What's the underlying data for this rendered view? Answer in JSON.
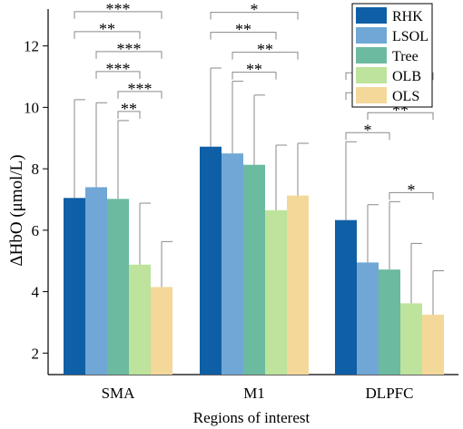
{
  "chart_data": {
    "type": "bar",
    "title": "",
    "xlabel": "Regions of interest",
    "ylabel": "ΔHbO (μmol/L)",
    "ylim": [
      1.3,
      13.2
    ],
    "yticks": [
      2,
      4,
      6,
      8,
      10,
      12
    ],
    "grid": false,
    "legend_position": "top-right",
    "categories": [
      "SMA",
      "M1",
      "DLPFC"
    ],
    "series": [
      {
        "name": "RHK",
        "color": "#0f5fa6",
        "values": [
          7.05,
          8.72,
          6.33
        ],
        "error_upper": [
          10.25,
          11.28,
          8.88
        ]
      },
      {
        "name": "LSOL",
        "color": "#70a7d6",
        "values": [
          7.4,
          8.5,
          4.95
        ],
        "error_upper": [
          10.15,
          10.85,
          6.83
        ]
      },
      {
        "name": "Tree",
        "color": "#6cbaa0",
        "values": [
          7.02,
          8.13,
          4.72
        ],
        "error_upper": [
          9.57,
          10.4,
          6.93
        ]
      },
      {
        "name": "OLB",
        "color": "#bde39c",
        "values": [
          4.88,
          6.65,
          3.62
        ],
        "error_upper": [
          6.88,
          8.77,
          5.57
        ]
      },
      {
        "name": "OLS",
        "color": "#f3d89a",
        "values": [
          4.15,
          7.13,
          3.25
        ],
        "error_upper": [
          5.63,
          8.83,
          4.68
        ]
      }
    ],
    "significance": [
      {
        "category": 0,
        "from": 0,
        "to": 4,
        "label": "***"
      },
      {
        "category": 0,
        "from": 1,
        "to": 4,
        "label": "***"
      },
      {
        "category": 0,
        "from": 2,
        "to": 4,
        "label": "***"
      },
      {
        "category": 0,
        "from": 0,
        "to": 3,
        "label": "**"
      },
      {
        "category": 0,
        "from": 1,
        "to": 3,
        "label": "***"
      },
      {
        "category": 0,
        "from": 2,
        "to": 3,
        "label": "**"
      },
      {
        "category": 1,
        "from": 0,
        "to": 4,
        "label": "*"
      },
      {
        "category": 1,
        "from": 1,
        "to": 4,
        "label": "**"
      },
      {
        "category": 1,
        "from": 0,
        "to": 3,
        "label": "**"
      },
      {
        "category": 1,
        "from": 1,
        "to": 3,
        "label": "**"
      },
      {
        "category": 2,
        "from": 0,
        "to": 4,
        "label": "***"
      },
      {
        "category": 2,
        "from": 0,
        "to": 3,
        "label": "***"
      },
      {
        "category": 2,
        "from": 0,
        "to": 2,
        "label": "*"
      },
      {
        "category": 2,
        "from": 1,
        "to": 4,
        "label": "**"
      },
      {
        "category": 2,
        "from": 2,
        "to": 4,
        "label": "*"
      }
    ]
  }
}
